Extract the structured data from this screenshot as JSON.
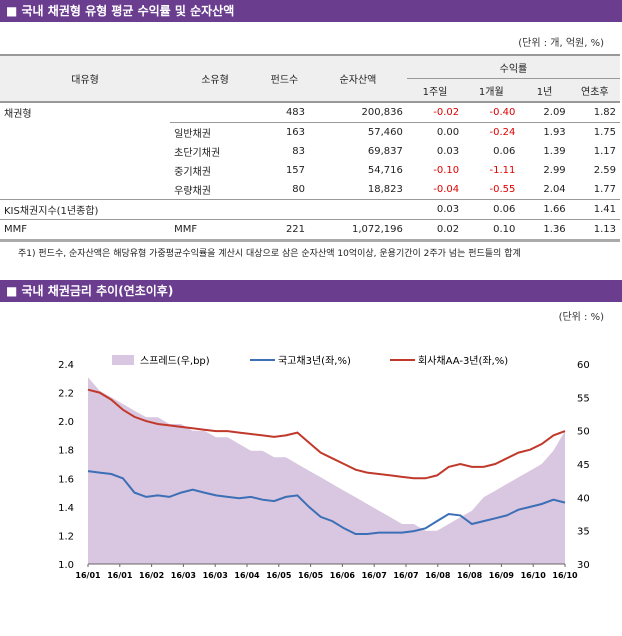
{
  "section1": {
    "title": "■ 국내 채권형 유형 평균 수익률 및 순자산액",
    "unit": "(단위 : 개, 억원, %)"
  },
  "table": {
    "headers": {
      "major": "대유형",
      "minor": "소유형",
      "funds": "펀드수",
      "assets": "순자산액",
      "returns": "수익률",
      "w1": "1주일",
      "m1": "1개월",
      "y1": "1년",
      "ytd": "연초후"
    },
    "rows": [
      {
        "major": "채권형",
        "minor": "",
        "funds": "483",
        "assets": "200,836",
        "w1": "-0.02",
        "m1": "-0.40",
        "y1": "2.09",
        "ytd": "1.82"
      },
      {
        "major": "",
        "minor": "일반채권",
        "funds": "163",
        "assets": "57,460",
        "w1": "0.00",
        "m1": "-0.24",
        "y1": "1.93",
        "ytd": "1.75"
      },
      {
        "major": "",
        "minor": "초단기채권",
        "funds": "83",
        "assets": "69,837",
        "w1": "0.03",
        "m1": "0.06",
        "y1": "1.39",
        "ytd": "1.17"
      },
      {
        "major": "",
        "minor": "중기채권",
        "funds": "157",
        "assets": "54,716",
        "w1": "-0.10",
        "m1": "-1.11",
        "y1": "2.99",
        "ytd": "2.59"
      },
      {
        "major": "",
        "minor": "우량채권",
        "funds": "80",
        "assets": "18,823",
        "w1": "-0.04",
        "m1": "-0.55",
        "y1": "2.04",
        "ytd": "1.77"
      },
      {
        "major": "KIS채권지수(1년종합)",
        "minor": "",
        "funds": "",
        "assets": "",
        "w1": "0.03",
        "m1": "0.06",
        "y1": "1.66",
        "ytd": "1.41"
      },
      {
        "major": "MMF",
        "minor": "MMF",
        "funds": "221",
        "assets": "1,072,196",
        "w1": "0.02",
        "m1": "0.10",
        "y1": "1.36",
        "ytd": "1.13"
      }
    ]
  },
  "note": "주1) 펀드수, 순자산액은 해당유형 가중평균수익률을 계산시 대상으로 삼은 순자산액 10억이상, 운용기간이 2주가 넘는 펀드들의 합계",
  "section2": {
    "title": "■ 국내 채권금리 추이(연초이후)",
    "unit": "(단위 : %)"
  },
  "chart_data": {
    "type": "line",
    "x_ticks": [
      "16/01",
      "16/01",
      "16/02",
      "16/03",
      "16/03",
      "16/04",
      "16/05",
      "16/05",
      "16/06",
      "16/07",
      "16/07",
      "16/08",
      "16/08",
      "16/09",
      "16/10",
      "16/10"
    ],
    "y_left": {
      "range": [
        1.0,
        2.4
      ],
      "ticks": [
        "1.0",
        "1.2",
        "1.4",
        "1.6",
        "1.8",
        "2.0",
        "2.2",
        "2.4"
      ]
    },
    "y_right": {
      "range": [
        30,
        60
      ],
      "ticks": [
        "30",
        "35",
        "40",
        "45",
        "50",
        "55",
        "60"
      ]
    },
    "series": [
      {
        "name": "스프레드(우,bp)",
        "type": "area",
        "axis": "right",
        "color": "#d9c6e0",
        "values": [
          58,
          56,
          55,
          54,
          53,
          52,
          52,
          51,
          51,
          50,
          50,
          49,
          49,
          48,
          47,
          47,
          46,
          46,
          45,
          44,
          43,
          42,
          41,
          40,
          39,
          38,
          37,
          36,
          36,
          35,
          35,
          36,
          37,
          38,
          40,
          41,
          42,
          43,
          44,
          45,
          47,
          50
        ]
      },
      {
        "name": "국고채3년(좌,%)",
        "type": "line",
        "axis": "left",
        "color": "#3b6fb6",
        "values": [
          1.65,
          1.64,
          1.63,
          1.6,
          1.5,
          1.47,
          1.48,
          1.47,
          1.5,
          1.52,
          1.5,
          1.48,
          1.47,
          1.46,
          1.47,
          1.45,
          1.44,
          1.47,
          1.48,
          1.4,
          1.33,
          1.3,
          1.25,
          1.21,
          1.21,
          1.22,
          1.22,
          1.22,
          1.23,
          1.25,
          1.3,
          1.35,
          1.34,
          1.28,
          1.3,
          1.32,
          1.34,
          1.38,
          1.4,
          1.42,
          1.45,
          1.43
        ]
      },
      {
        "name": "회사채AA-3년(좌,%)",
        "type": "line",
        "axis": "left",
        "color": "#c0392b",
        "values": [
          2.22,
          2.2,
          2.15,
          2.08,
          2.03,
          2.0,
          1.98,
          1.97,
          1.96,
          1.95,
          1.94,
          1.93,
          1.93,
          1.92,
          1.91,
          1.9,
          1.89,
          1.9,
          1.92,
          1.85,
          1.78,
          1.74,
          1.7,
          1.66,
          1.64,
          1.63,
          1.62,
          1.61,
          1.6,
          1.6,
          1.62,
          1.68,
          1.7,
          1.68,
          1.68,
          1.7,
          1.74,
          1.78,
          1.8,
          1.84,
          1.9,
          1.93
        ]
      }
    ]
  }
}
